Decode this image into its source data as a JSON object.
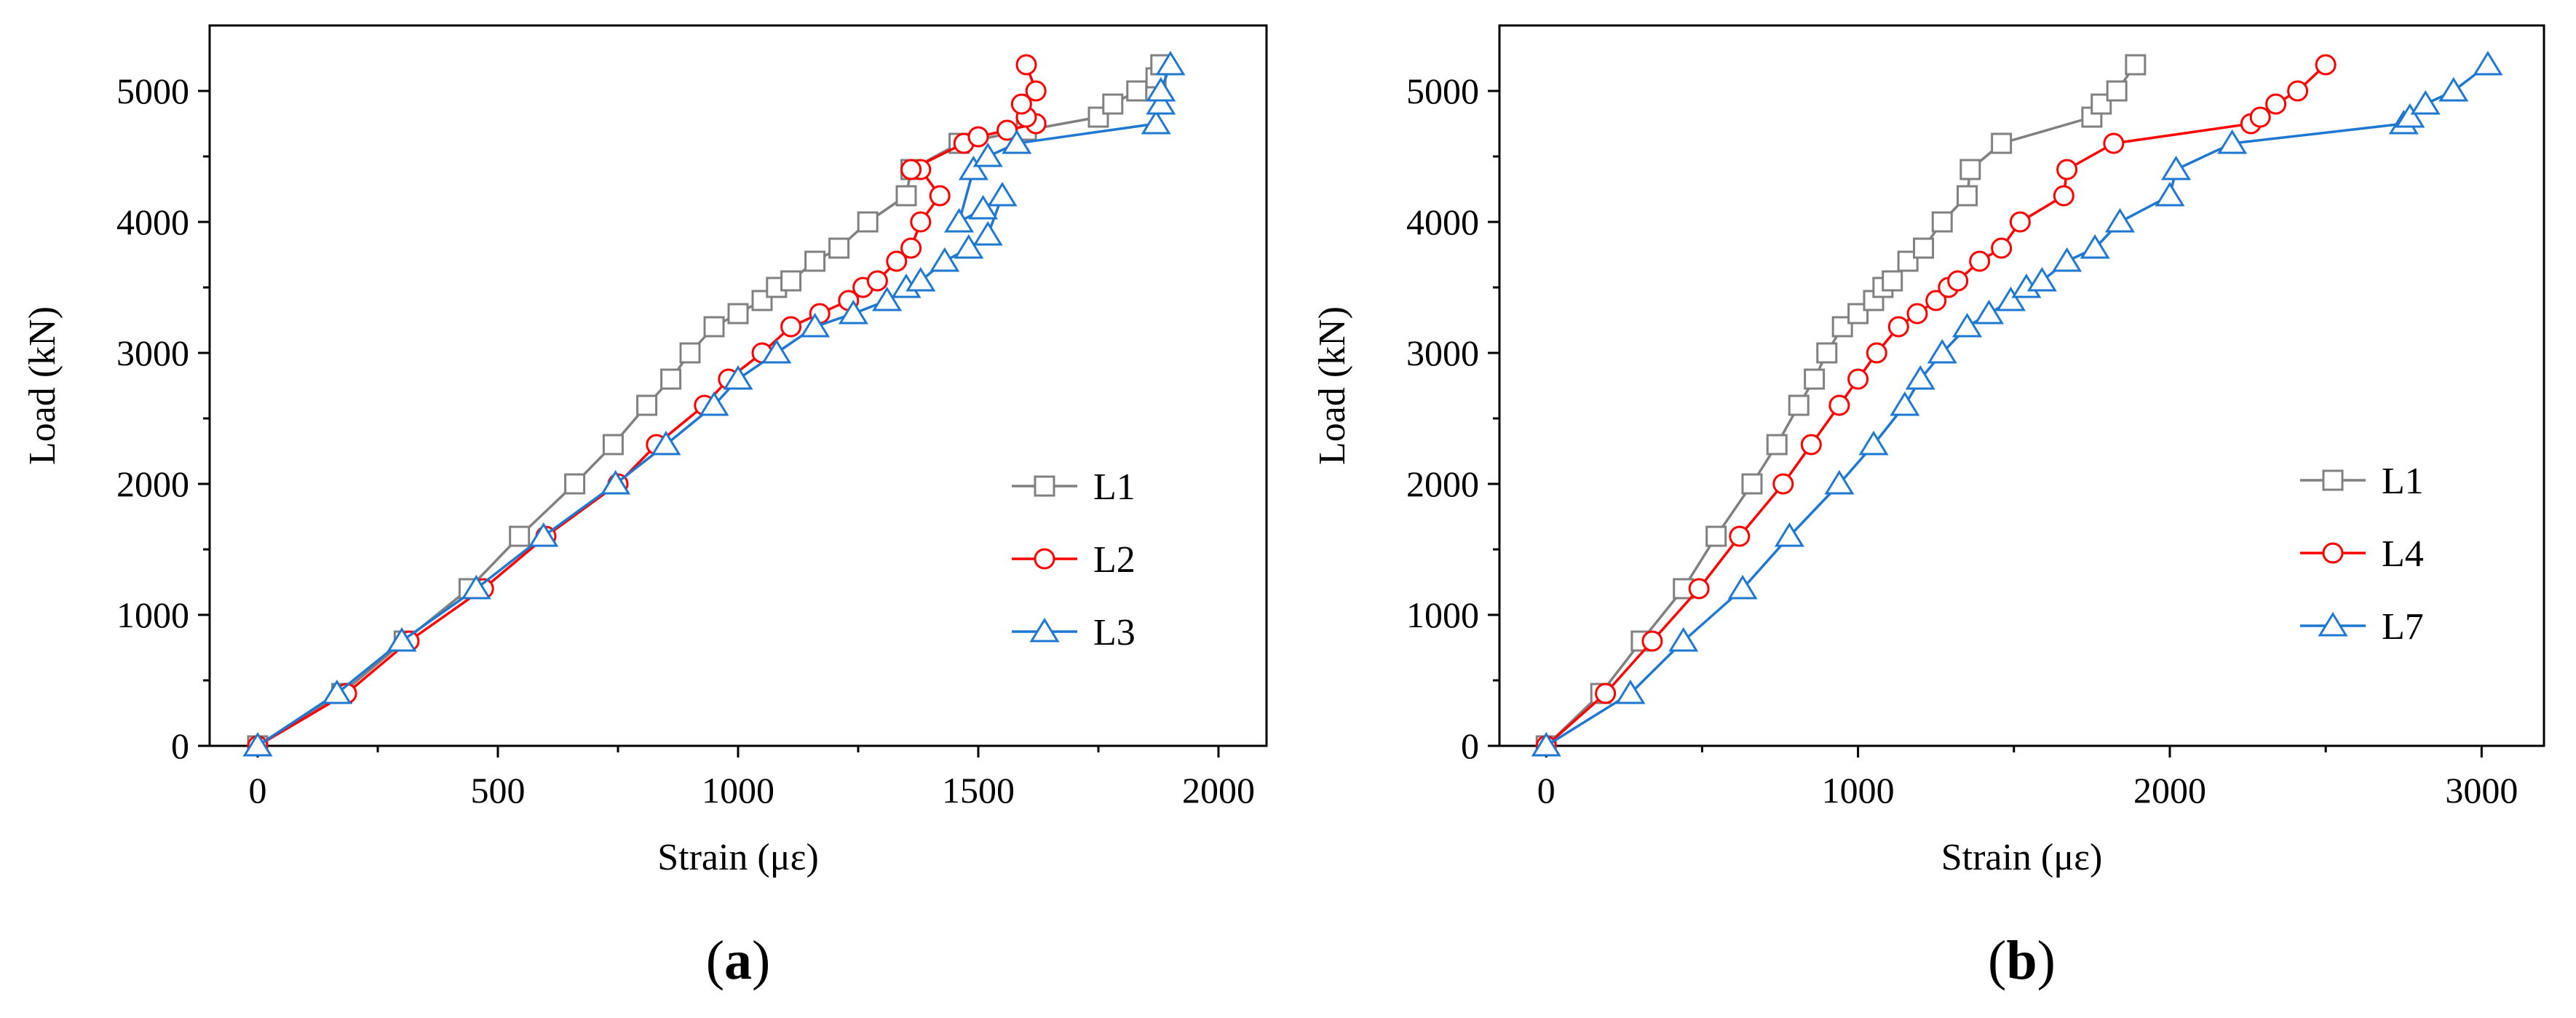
{
  "chart_data": [
    {
      "id": "a",
      "type": "line",
      "panel_label": "a",
      "xlabel": "Strain (με)",
      "ylabel": "Load (kN)",
      "xlim": [
        -100,
        2100
      ],
      "ylim": [
        0,
        5500
      ],
      "xticks": [
        0,
        500,
        1000,
        1500,
        2000
      ],
      "yticks": [
        0,
        1000,
        2000,
        3000,
        4000,
        5000
      ],
      "legend_position": "lower-right",
      "series": [
        {
          "name": "L1",
          "color": "#808080",
          "marker": "square",
          "x": [
            0,
            175,
            305,
            440,
            545,
            660,
            740,
            810,
            860,
            900,
            950,
            1000,
            1050,
            1080,
            1110,
            1160,
            1210,
            1270,
            1350,
            1360,
            1360,
            1460,
            1600,
            1750,
            1780,
            1830,
            1870,
            1880
          ],
          "y": [
            0,
            400,
            800,
            1200,
            1600,
            2000,
            2300,
            2600,
            2800,
            3000,
            3200,
            3300,
            3400,
            3500,
            3550,
            3700,
            3800,
            4000,
            4200,
            4400,
            4400,
            4600,
            4700,
            4800,
            4900,
            5000,
            5100,
            5200
          ]
        },
        {
          "name": "L2",
          "color": "#ff0000",
          "marker": "circle",
          "x": [
            0,
            185,
            315,
            470,
            600,
            750,
            830,
            930,
            980,
            1050,
            1110,
            1170,
            1230,
            1260,
            1290,
            1330,
            1360,
            1380,
            1420,
            1380,
            1360,
            1470,
            1500,
            1560,
            1620,
            1600,
            1590,
            1620,
            1600
          ],
          "y": [
            0,
            400,
            800,
            1200,
            1600,
            2000,
            2300,
            2600,
            2800,
            3000,
            3200,
            3300,
            3400,
            3500,
            3550,
            3700,
            3800,
            4000,
            4200,
            4400,
            4400,
            4600,
            4650,
            4700,
            4750,
            4800,
            4900,
            5000,
            5200
          ]
        },
        {
          "name": "L3",
          "color": "#1e78d2",
          "marker": "triangle",
          "x": [
            0,
            165,
            300,
            455,
            595,
            745,
            850,
            950,
            1000,
            1080,
            1160,
            1240,
            1310,
            1350,
            1380,
            1430,
            1480,
            1520,
            1550,
            1510,
            1460,
            1490,
            1520,
            1580,
            1870,
            1880,
            1880,
            1900
          ],
          "y": [
            0,
            400,
            800,
            1200,
            1600,
            2000,
            2300,
            2600,
            2800,
            3000,
            3200,
            3300,
            3400,
            3500,
            3550,
            3700,
            3800,
            3900,
            4200,
            4100,
            4000,
            4400,
            4500,
            4600,
            4750,
            4900,
            5000,
            5200
          ]
        }
      ]
    },
    {
      "id": "b",
      "type": "line",
      "panel_label": "b",
      "xlabel": "Strain (με)",
      "ylabel": "Load (kN)",
      "xlim": [
        -150,
        3200
      ],
      "ylim": [
        0,
        5500
      ],
      "xticks": [
        0,
        1000,
        2000,
        3000
      ],
      "yticks": [
        0,
        1000,
        2000,
        3000,
        4000,
        5000
      ],
      "legend_position": "lower-right",
      "series": [
        {
          "name": "L1",
          "color": "#808080",
          "marker": "square",
          "x": [
            0,
            175,
            305,
            440,
            545,
            660,
            740,
            810,
            860,
            900,
            950,
            1000,
            1050,
            1080,
            1110,
            1160,
            1210,
            1270,
            1350,
            1360,
            1460,
            1750,
            1780,
            1830,
            1890
          ],
          "y": [
            0,
            400,
            800,
            1200,
            1600,
            2000,
            2300,
            2600,
            2800,
            3000,
            3200,
            3300,
            3400,
            3500,
            3550,
            3700,
            3800,
            4000,
            4200,
            4400,
            4600,
            4800,
            4900,
            5000,
            5200
          ]
        },
        {
          "name": "L4",
          "color": "#ff0000",
          "marker": "circle",
          "x": [
            0,
            190,
            340,
            490,
            620,
            760,
            850,
            940,
            1000,
            1060,
            1130,
            1190,
            1250,
            1290,
            1320,
            1390,
            1460,
            1520,
            1660,
            1670,
            1820,
            2260,
            2290,
            2340,
            2410,
            2500
          ],
          "y": [
            0,
            400,
            800,
            1200,
            1600,
            2000,
            2300,
            2600,
            2800,
            3000,
            3200,
            3300,
            3400,
            3500,
            3550,
            3700,
            3800,
            4000,
            4200,
            4400,
            4600,
            4750,
            4800,
            4900,
            5000,
            5200
          ]
        },
        {
          "name": "L7",
          "color": "#1e78d2",
          "marker": "triangle",
          "x": [
            0,
            270,
            440,
            630,
            780,
            940,
            1050,
            1150,
            1200,
            1270,
            1350,
            1420,
            1490,
            1540,
            1590,
            1670,
            1760,
            1840,
            2000,
            2020,
            2200,
            2750,
            2770,
            2820,
            2910,
            3020
          ],
          "y": [
            0,
            400,
            800,
            1200,
            1600,
            2000,
            2300,
            2600,
            2800,
            3000,
            3200,
            3300,
            3400,
            3500,
            3550,
            3700,
            3800,
            4000,
            4200,
            4400,
            4600,
            4750,
            4800,
            4900,
            5000,
            5200
          ]
        }
      ]
    }
  ]
}
